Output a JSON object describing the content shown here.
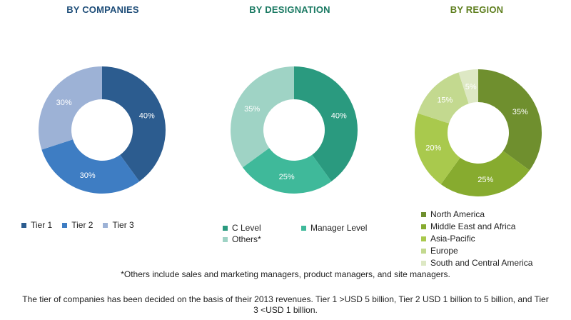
{
  "chart_data": [
    {
      "type": "pie",
      "title": "BY COMPANIES",
      "categories": [
        "Tier 1",
        "Tier 2",
        "Tier 3"
      ],
      "values": [
        40,
        30,
        30
      ],
      "labels": [
        "40%",
        "30%",
        "30%"
      ],
      "colors": [
        "#2c5c8f",
        "#3e7dc3",
        "#9db2d6"
      ],
      "title_color": "#1f4e79",
      "legend_position": "bottom"
    },
    {
      "type": "pie",
      "title": "BY DESIGNATION",
      "categories": [
        "C Level",
        "Manager Level",
        "Others*"
      ],
      "values": [
        40,
        25,
        35
      ],
      "labels": [
        "40%",
        "25%",
        "35%"
      ],
      "colors": [
        "#2a9a7f",
        "#3fb99a",
        "#9fd3c5"
      ],
      "title_color": "#1b7a63",
      "legend_position": "bottom"
    },
    {
      "type": "pie",
      "title": "BY REGION",
      "categories": [
        "North America",
        "Middle East and Africa",
        "Asia-Pacific",
        "Europe",
        "South and Central America"
      ],
      "values": [
        35,
        25,
        20,
        15,
        5
      ],
      "labels": [
        "35%",
        "25%",
        "20%",
        "15%",
        "5%"
      ],
      "colors": [
        "#6f8f2e",
        "#87ab2f",
        "#a9c94d",
        "#c3d98f",
        "#dde8c4"
      ],
      "title_color": "#5f7f1f",
      "legend_position": "bottom"
    }
  ],
  "footnote": "*Others include sales and marketing managers, product managers, and site managers.",
  "note": "The tier of companies has been decided on the basis of their 2013 revenues. Tier 1 >USD 5 billion, Tier 2 USD 1 billion to 5 billion, and Tier 3 <USD 1 billion."
}
